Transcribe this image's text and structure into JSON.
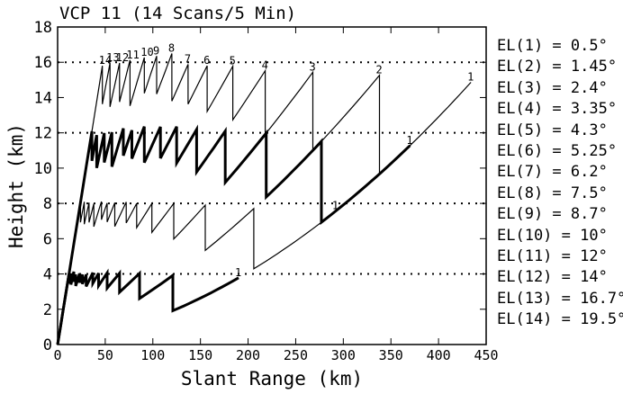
{
  "chart_data": {
    "type": "line",
    "title": "VCP 11 (14 Scans/5 Min)",
    "xlabel": "Slant Range (km)",
    "ylabel": "Height (km)",
    "xlim": [
      0,
      450
    ],
    "ylim": [
      0,
      18
    ],
    "xticks": [
      0,
      50,
      100,
      150,
      200,
      250,
      300,
      350,
      400,
      450
    ],
    "yticks": [
      0,
      2,
      4,
      6,
      8,
      10,
      12,
      14,
      16,
      18
    ],
    "grid": false,
    "legend_position": "right",
    "reference_heights": [
      4,
      8,
      12,
      16
    ],
    "elevations": [
      {
        "index": 1,
        "label": "EL(1) = 0.5°",
        "angle": 0.5
      },
      {
        "index": 2,
        "label": "EL(2) = 1.45°",
        "angle": 1.45
      },
      {
        "index": 3,
        "label": "EL(3) = 2.4°",
        "angle": 2.4
      },
      {
        "index": 4,
        "label": "EL(4) = 3.35°",
        "angle": 3.35
      },
      {
        "index": 5,
        "label": "EL(5) = 4.3°",
        "angle": 4.3
      },
      {
        "index": 6,
        "label": "EL(6) = 5.25°",
        "angle": 5.25
      },
      {
        "index": 7,
        "label": "EL(7) = 6.2°",
        "angle": 6.2
      },
      {
        "index": 8,
        "label": "EL(8) = 7.5°",
        "angle": 7.5
      },
      {
        "index": 9,
        "label": "EL(9) = 8.7°",
        "angle": 8.7
      },
      {
        "index": 10,
        "label": "EL(10) = 10°",
        "angle": 10
      },
      {
        "index": 11,
        "label": "EL(11) = 12°",
        "angle": 12
      },
      {
        "index": 12,
        "label": "EL(12) = 14°",
        "angle": 14
      },
      {
        "index": 13,
        "label": "EL(13) = 16.7°",
        "angle": 16.7
      },
      {
        "index": 14,
        "label": "EL(14) = 19.5°",
        "angle": 19.5
      }
    ],
    "series": [
      {
        "height_km": 4,
        "line_style": "thick",
        "end_ranges": [
          190,
          121,
          86,
          65,
          52,
          43,
          37,
          30,
          26,
          23,
          19,
          17,
          14,
          12
        ]
      },
      {
        "height_km": 8,
        "line_style": "thin",
        "end_ranges": [
          292,
          206,
          155,
          122,
          99,
          83,
          72,
          60,
          52,
          46,
          38,
          33,
          28,
          24
        ]
      },
      {
        "height_km": 12,
        "line_style": "thick",
        "end_ranges": [
          370,
          277,
          219,
          176,
          146,
          125,
          108,
          91,
          78,
          69,
          57,
          49,
          41,
          36
        ]
      },
      {
        "height_km": 16,
        "line_style": "thin",
        "end_ranges": [
          434,
          338,
          268,
          218,
          184,
          157,
          137,
          120,
          104,
          91,
          76,
          65,
          55,
          47
        ]
      }
    ],
    "series_end_labels": [
      {
        "height_km": 4,
        "labels": [
          "1"
        ]
      },
      {
        "height_km": 8,
        "labels": [
          "1"
        ]
      },
      {
        "height_km": 12,
        "labels": [
          "1"
        ]
      },
      {
        "height_km": 16,
        "labels": [
          "1",
          "2",
          "3",
          "4",
          "5",
          "6",
          "7",
          "8",
          "9",
          "10",
          "11",
          "12",
          "13",
          "14"
        ]
      }
    ]
  }
}
